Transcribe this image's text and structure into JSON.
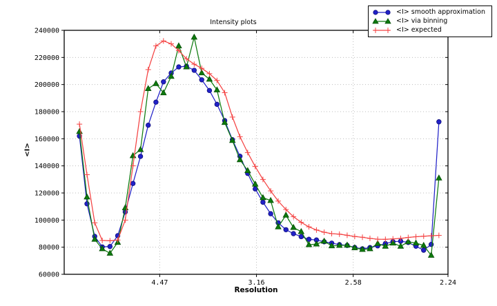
{
  "figure_title": "Intensity plots",
  "chart_data": {
    "type": "line",
    "title": "Intensity plots",
    "xlabel": "Resolution",
    "ylabel": "<I>",
    "grid": "dotted",
    "grid_color": "#bbbbbb",
    "legend_position": "top-right",
    "x_axis": {
      "unit": "1/d^2",
      "min": 0.0006,
      "max": 0.1993,
      "ticks": [
        {
          "value": 0.05005,
          "label": "4.47"
        },
        {
          "value": 0.10015,
          "label": "3.16"
        },
        {
          "value": 0.15023,
          "label": "2.58"
        },
        {
          "value": 0.1993,
          "label": "2.24"
        }
      ]
    },
    "y_axis": {
      "min": 60000,
      "max": 240000,
      "ticks": [
        {
          "value": 60000,
          "label": "60000"
        },
        {
          "value": 80000,
          "label": "80000"
        },
        {
          "value": 100000,
          "label": "100000"
        },
        {
          "value": 120000,
          "label": "120000"
        },
        {
          "value": 140000,
          "label": "140000"
        },
        {
          "value": 160000,
          "label": "160000"
        },
        {
          "value": 180000,
          "label": "180000"
        },
        {
          "value": 200000,
          "label": "200000"
        },
        {
          "value": 220000,
          "label": "220000"
        },
        {
          "value": 240000,
          "label": "240000"
        }
      ]
    },
    "x_1_over_d2": [
      0.0085,
      0.0124,
      0.0164,
      0.0203,
      0.0243,
      0.0283,
      0.0322,
      0.0362,
      0.0401,
      0.0441,
      0.0481,
      0.052,
      0.056,
      0.0599,
      0.0639,
      0.0679,
      0.0718,
      0.0758,
      0.0797,
      0.0837,
      0.0877,
      0.0916,
      0.0956,
      0.0995,
      0.1035,
      0.1075,
      0.1114,
      0.1154,
      0.1193,
      0.1233,
      0.1273,
      0.1312,
      0.1352,
      0.1391,
      0.1431,
      0.1471,
      0.151,
      0.155,
      0.1589,
      0.1629,
      0.1669,
      0.1708,
      0.1748,
      0.1787,
      0.1827,
      0.1867,
      0.1906,
      0.1946
    ],
    "series": [
      {
        "name": "<I> smooth approximation",
        "color": "#2121c8",
        "marker": "circle",
        "marker_edge": "#10107a",
        "values": [
          162000,
          112000,
          88000,
          80200,
          80500,
          88500,
          106000,
          127000,
          147000,
          170000,
          187000,
          202000,
          208500,
          213000,
          213500,
          210500,
          203500,
          195600,
          185400,
          173400,
          159300,
          147100,
          134400,
          123000,
          113200,
          104700,
          98000,
          92900,
          90000,
          87800,
          85800,
          85300,
          84000,
          83000,
          81900,
          81300,
          79800,
          78800,
          79700,
          81000,
          82700,
          84000,
          84400,
          83500,
          80700,
          77800,
          82000,
          172500
        ]
      },
      {
        "name": "<I> via binning",
        "color": "#0d7a0d",
        "marker": "triangle",
        "marker_edge": "#064d06",
        "values": [
          165300,
          117000,
          85800,
          78800,
          75500,
          83500,
          109000,
          147500,
          152000,
          197000,
          200700,
          193900,
          206000,
          228500,
          213000,
          234900,
          208600,
          203900,
          196000,
          172000,
          158700,
          144500,
          136500,
          126500,
          116500,
          114400,
          95000,
          103600,
          94500,
          91500,
          81800,
          82300,
          84400,
          81000,
          81300,
          81500,
          79500,
          78300,
          78800,
          82700,
          80700,
          83000,
          80700,
          84000,
          83000,
          81300,
          74000,
          131000
        ]
      },
      {
        "name": "<I> expected",
        "color": "#f44242",
        "marker": "plus",
        "marker_edge": "#f44242",
        "values": [
          170800,
          133500,
          98000,
          85000,
          84800,
          85300,
          100000,
          140000,
          180000,
          211000,
          228500,
          232200,
          230000,
          225000,
          219000,
          215000,
          212000,
          208000,
          203000,
          194000,
          176000,
          161500,
          149800,
          139500,
          130000,
          121500,
          114000,
          107800,
          102500,
          98300,
          95000,
          92700,
          91000,
          90000,
          89600,
          88800,
          87900,
          87300,
          86500,
          85900,
          85800,
          86100,
          86500,
          87200,
          87700,
          88100,
          88400,
          88700
        ]
      }
    ]
  }
}
